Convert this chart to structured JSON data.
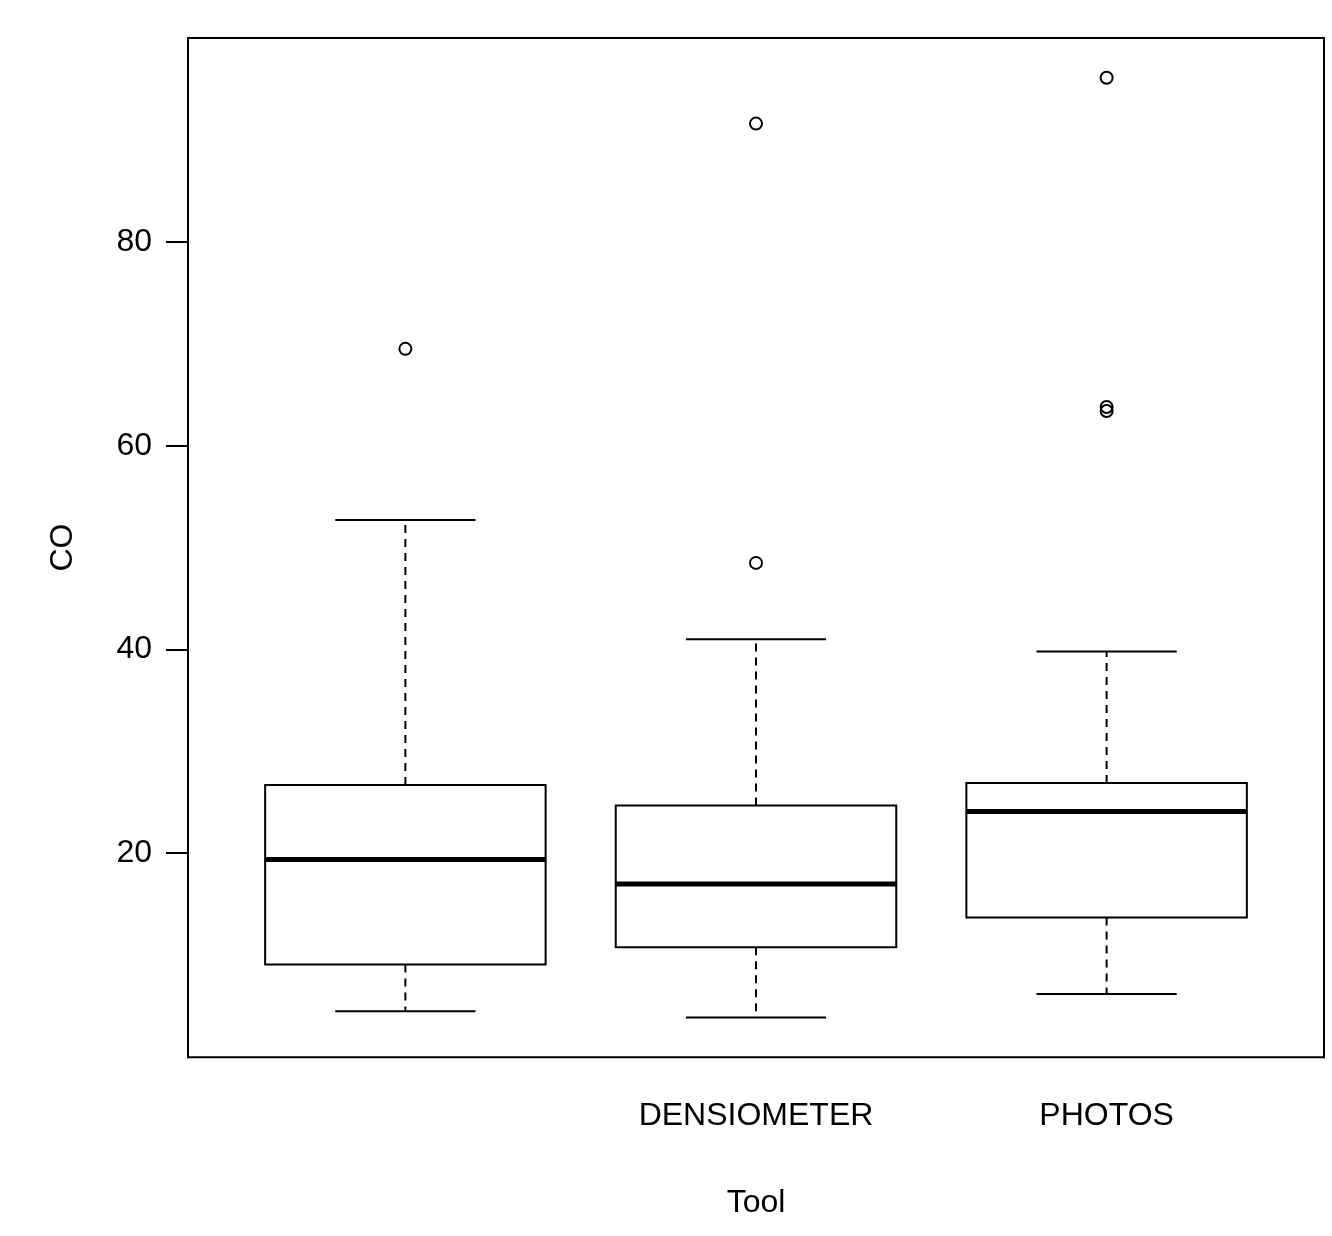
{
  "chart_data": {
    "type": "box",
    "categories": [
      null,
      "DENSIOMETER",
      "PHOTOS"
    ],
    "xlabel": "Tool",
    "ylabel": "CO",
    "ylim": [
      0,
      100
    ],
    "yticks": [
      20,
      40,
      60,
      80
    ],
    "grid": false,
    "legend": false,
    "boxes": [
      {
        "low": 4.5,
        "q1": 9.1,
        "median": 19.4,
        "q3": 26.7,
        "high": 52.7,
        "outliers": [
          69.5
        ]
      },
      {
        "low": 3.9,
        "q1": 10.8,
        "median": 17.0,
        "q3": 24.7,
        "high": 41.0,
        "outliers": [
          48.5,
          91.6
        ]
      },
      {
        "low": 6.2,
        "q1": 13.7,
        "median": 24.1,
        "q3": 26.9,
        "high": 39.8,
        "outliers": [
          63.4,
          63.8,
          96.1
        ]
      }
    ]
  }
}
